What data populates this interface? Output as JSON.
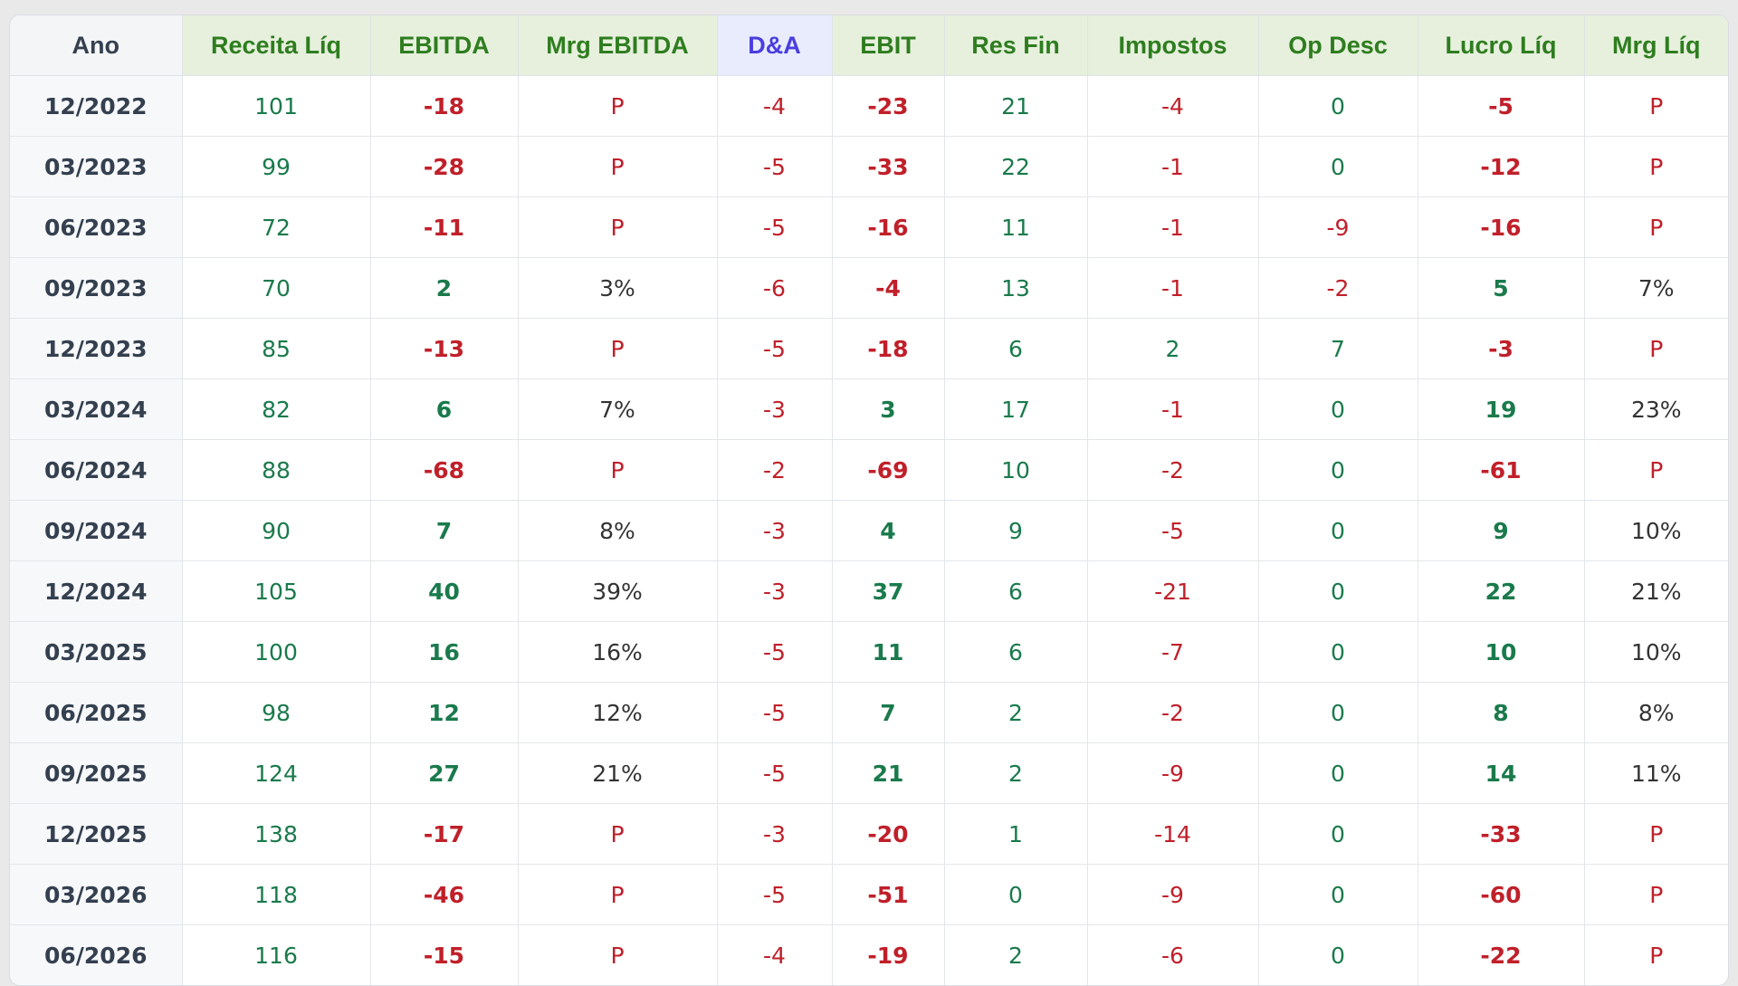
{
  "table": {
    "columns": [
      "Ano",
      "Receita Líq",
      "EBITDA",
      "Mrg EBITDA",
      "D&A",
      "EBIT",
      "Res Fin",
      "Impostos",
      "Op Desc",
      "Lucro Líq",
      "Mrg Líq"
    ],
    "rows": [
      [
        "12/2022",
        "101",
        "-18",
        "P",
        "-4",
        "-23",
        "21",
        "-4",
        "0",
        "-5",
        "P"
      ],
      [
        "03/2023",
        "99",
        "-28",
        "P",
        "-5",
        "-33",
        "22",
        "-1",
        "0",
        "-12",
        "P"
      ],
      [
        "06/2023",
        "72",
        "-11",
        "P",
        "-5",
        "-16",
        "11",
        "-1",
        "-9",
        "-16",
        "P"
      ],
      [
        "09/2023",
        "70",
        "2",
        "3%",
        "-6",
        "-4",
        "13",
        "-1",
        "-2",
        "5",
        "7%"
      ],
      [
        "12/2023",
        "85",
        "-13",
        "P",
        "-5",
        "-18",
        "6",
        "2",
        "7",
        "-3",
        "P"
      ],
      [
        "03/2024",
        "82",
        "6",
        "7%",
        "-3",
        "3",
        "17",
        "-1",
        "0",
        "19",
        "23%"
      ],
      [
        "06/2024",
        "88",
        "-68",
        "P",
        "-2",
        "-69",
        "10",
        "-2",
        "0",
        "-61",
        "P"
      ],
      [
        "09/2024",
        "90",
        "7",
        "8%",
        "-3",
        "4",
        "9",
        "-5",
        "0",
        "9",
        "10%"
      ],
      [
        "12/2024",
        "105",
        "40",
        "39%",
        "-3",
        "37",
        "6",
        "-21",
        "0",
        "22",
        "21%"
      ],
      [
        "03/2025",
        "100",
        "16",
        "16%",
        "-5",
        "11",
        "6",
        "-7",
        "0",
        "10",
        "10%"
      ],
      [
        "06/2025",
        "98",
        "12",
        "12%",
        "-5",
        "7",
        "2",
        "-2",
        "0",
        "8",
        "8%"
      ],
      [
        "09/2025",
        "124",
        "27",
        "21%",
        "-5",
        "21",
        "2",
        "-9",
        "0",
        "14",
        "11%"
      ],
      [
        "12/2025",
        "138",
        "-17",
        "P",
        "-3",
        "-20",
        "1",
        "-14",
        "0",
        "-33",
        "P"
      ],
      [
        "03/2026",
        "118",
        "-46",
        "P",
        "-5",
        "-51",
        "0",
        "-9",
        "0",
        "-60",
        "P"
      ],
      [
        "06/2026",
        "116",
        "-15",
        "P",
        "-4",
        "-19",
        "2",
        "-6",
        "0",
        "-22",
        "P"
      ]
    ]
  }
}
